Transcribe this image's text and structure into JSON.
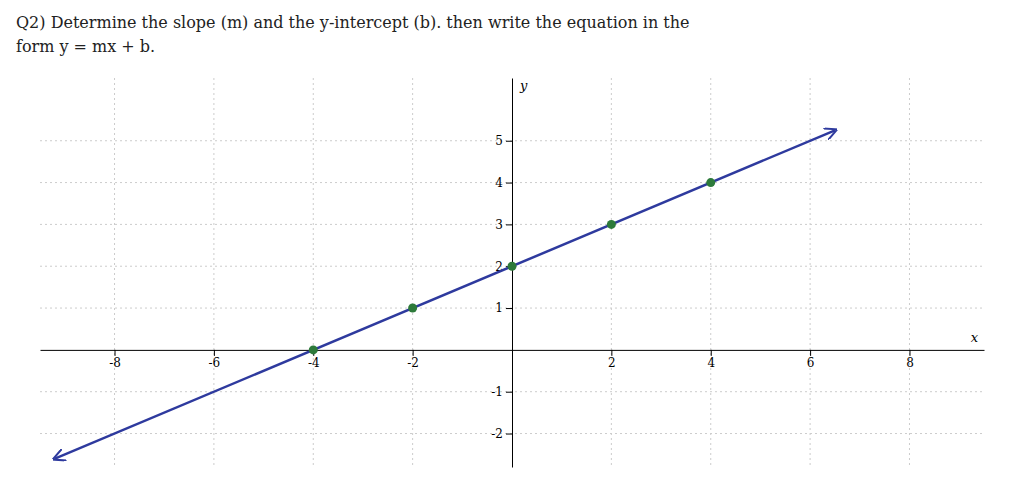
{
  "chart_data": {
    "type": "scatter",
    "title": "Q2) Determine the slope (m) and the y-intercept (b). then write the equation in the",
    "subtitle": "form y = mx + b.",
    "x_label": "x",
    "y_label": "y",
    "xlim": [
      -9.5,
      9.5
    ],
    "ylim": [
      -2.8,
      6.5
    ],
    "xticks": [
      -8,
      -6,
      -4,
      -2,
      2,
      4,
      6,
      8
    ],
    "yticks": [
      -2,
      -1,
      1,
      2,
      3,
      4,
      5
    ],
    "grid": true,
    "series": [
      {
        "type": "line",
        "color": "#2e3a9e",
        "x": [
          -9.2,
          6.5
        ],
        "values": [
          -2.6,
          5.25
        ]
      },
      {
        "type": "scatter",
        "color": "#2d7a3a",
        "x": [
          -4,
          -2,
          0,
          2,
          4
        ],
        "values": [
          0,
          1,
          2,
          3,
          4
        ]
      }
    ]
  }
}
